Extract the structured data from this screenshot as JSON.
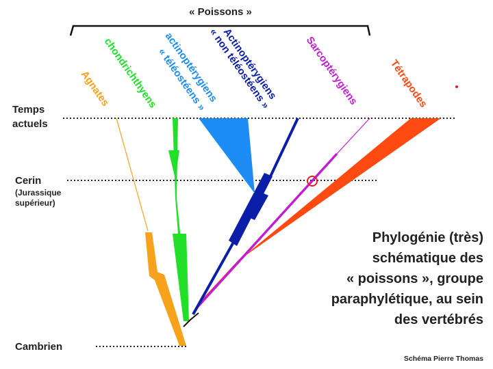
{
  "header": {
    "group_label": "« Poissons »"
  },
  "time_markers": {
    "present": [
      "Temps",
      "actuels"
    ],
    "cerin": [
      "Cerin",
      "(Jurassique",
      "supérieur)"
    ],
    "cambrian": "Cambrien"
  },
  "clades": [
    {
      "id": "agnathes",
      "label": "Agnates",
      "color": "#f7a21b"
    },
    {
      "id": "chondrichthyens",
      "label": "chondrichthyens",
      "color": "#22e02a"
    },
    {
      "id": "teleosteens",
      "label_lines": [
        "actinoptérygiens",
        "« téléostéens »"
      ],
      "color": "#1e8cf5"
    },
    {
      "id": "non-teleosteens",
      "label_lines": [
        "Actinoptérygiens",
        "« non téléostéens »"
      ],
      "color": "#0a1ea8"
    },
    {
      "id": "sarcopterygiens",
      "label": "Sarcoptérygiens",
      "color": "#c21ed1"
    },
    {
      "id": "tetrapodes",
      "label": "Tétrapodes",
      "color": "#ff4a12"
    }
  ],
  "caption": {
    "lines": [
      "Phylogénie (très)",
      "schématique des",
      "« poissons », groupe",
      "paraphylétique, au sein",
      "des vertébrés"
    ]
  },
  "credit": "Schéma Pierre Thomas",
  "colors": {
    "dotted_line": "#222222",
    "root_line": "#111111",
    "marker_circle": "#e0202a"
  }
}
